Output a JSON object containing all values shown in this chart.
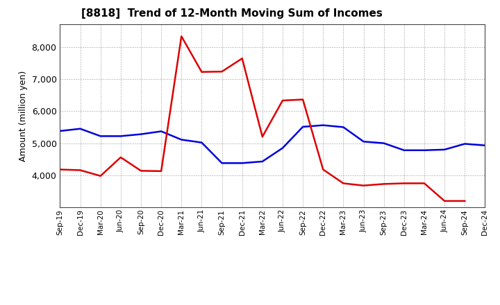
{
  "title": "[8818]  Trend of 12-Month Moving Sum of Incomes",
  "ylabel": "Amount (million yen)",
  "x_labels": [
    "Sep-19",
    "Dec-19",
    "Mar-20",
    "Jun-20",
    "Sep-20",
    "Dec-20",
    "Mar-21",
    "Jun-21",
    "Sep-21",
    "Dec-21",
    "Mar-22",
    "Jun-22",
    "Sep-22",
    "Dec-22",
    "Mar-23",
    "Jun-23",
    "Sep-23",
    "Dec-23",
    "Mar-24",
    "Jun-24",
    "Sep-24",
    "Dec-24"
  ],
  "ordinary_income": [
    5380,
    5450,
    5220,
    5220,
    5280,
    5370,
    5110,
    5020,
    4380,
    4380,
    4430,
    4850,
    5510,
    5560,
    5500,
    5050,
    5000,
    4780,
    4780,
    4800,
    4980,
    4930
  ],
  "net_income": [
    4180,
    4160,
    3980,
    4560,
    4140,
    4130,
    8330,
    7220,
    7230,
    7640,
    5200,
    6330,
    6360,
    4180,
    3750,
    3680,
    3730,
    3750,
    3750,
    3200,
    3200,
    null
  ],
  "ordinary_color": "#0000dd",
  "net_color": "#dd0000",
  "ylim_min": 3000,
  "ylim_max": 8700,
  "yticks": [
    4000,
    5000,
    6000,
    7000,
    8000
  ],
  "background_color": "#ffffff",
  "grid_color": "#999999",
  "line_width": 1.8
}
